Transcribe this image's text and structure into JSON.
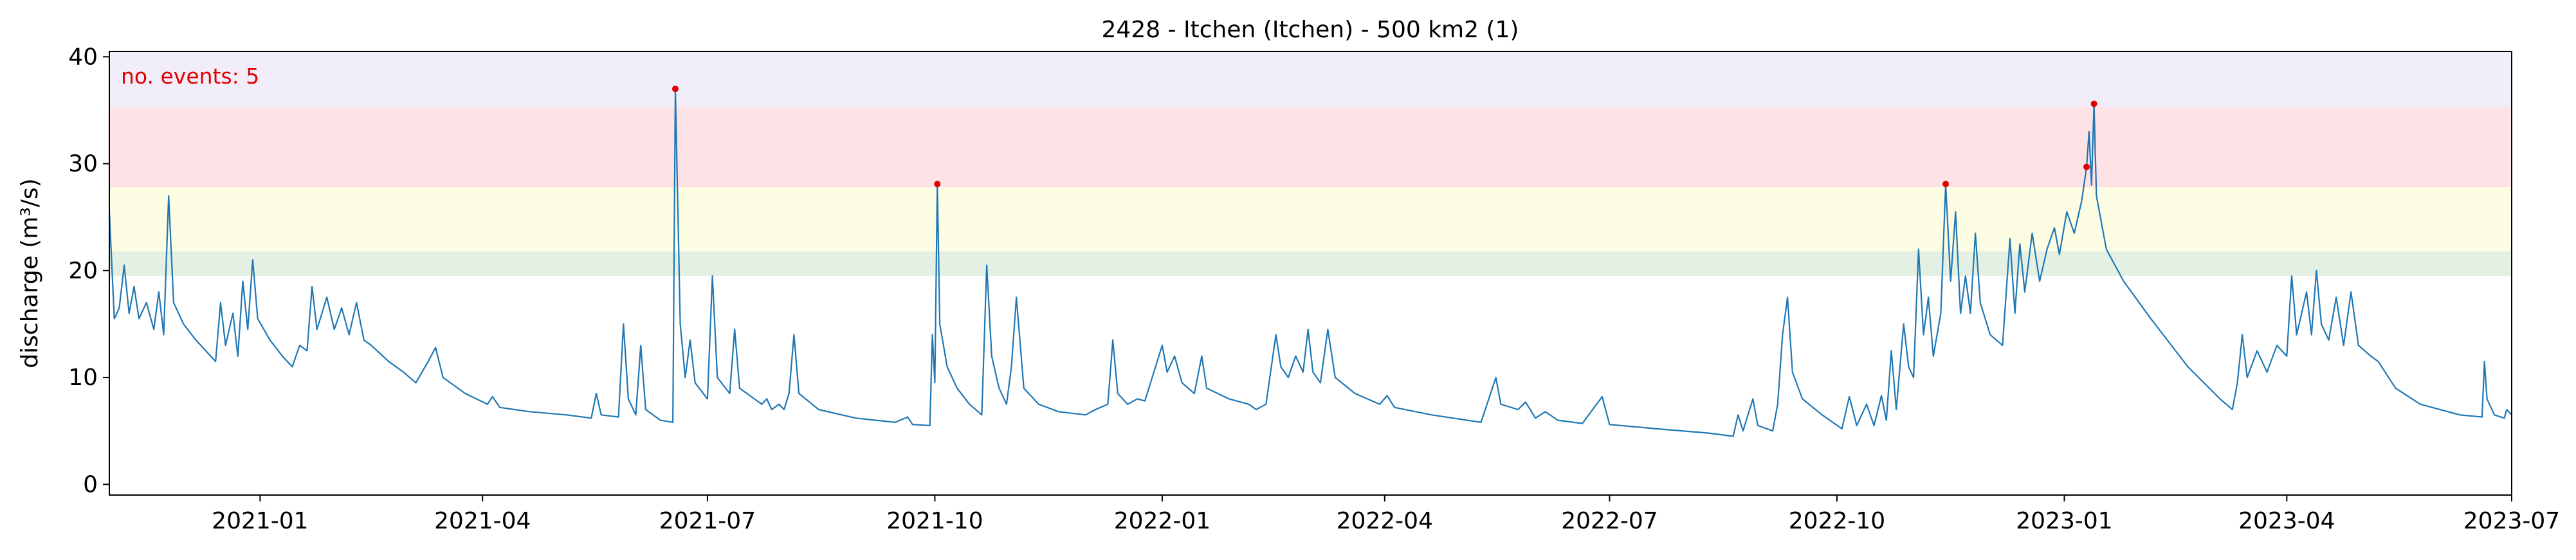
{
  "chart_data": {
    "type": "line",
    "title": "2428 - Itchen (Itchen) - 500 km2 (1)",
    "xlabel": "",
    "ylabel": "discharge (m³/s)",
    "xlim": [
      "2020-11-01",
      "2023-07-01"
    ],
    "ylim": [
      -1,
      40.5
    ],
    "xticks": [
      "2021-01",
      "2021-04",
      "2021-07",
      "2021-10",
      "2022-01",
      "2022-04",
      "2022-07",
      "2022-10",
      "2023-01",
      "2023-04",
      "2023-07"
    ],
    "yticks": [
      0,
      10,
      20,
      30,
      40
    ],
    "grid": false,
    "annotation": {
      "text": "no. events: 5",
      "color": "#e00000",
      "placement": "top-left"
    },
    "bands": [
      {
        "y0": 19.5,
        "y1": 21.8,
        "color": "#e3f0e3"
      },
      {
        "y0": 21.8,
        "y1": 27.8,
        "color": "#fdfde3"
      },
      {
        "y0": 27.8,
        "y1": 35.3,
        "color": "#fde3e5"
      },
      {
        "y0": 35.3,
        "y1": 40.5,
        "color": "#f1eef9"
      }
    ],
    "series": [
      {
        "color": "#1f77b4",
        "points": [
          [
            "2020-11-01",
            25.5
          ],
          [
            "2020-11-03",
            15.5
          ],
          [
            "2020-11-05",
            16.5
          ],
          [
            "2020-11-07",
            20.5
          ],
          [
            "2020-11-09",
            16
          ],
          [
            "2020-11-11",
            18.5
          ],
          [
            "2020-11-13",
            15.5
          ],
          [
            "2020-11-16",
            17
          ],
          [
            "2020-11-19",
            14.5
          ],
          [
            "2020-11-21",
            18
          ],
          [
            "2020-11-23",
            14
          ],
          [
            "2020-11-25",
            27
          ],
          [
            "2020-11-27",
            17
          ],
          [
            "2020-12-01",
            15
          ],
          [
            "2020-12-06",
            13.5
          ],
          [
            "2020-12-10",
            12.5
          ],
          [
            "2020-12-14",
            11.5
          ],
          [
            "2020-12-16",
            17
          ],
          [
            "2020-12-18",
            13
          ],
          [
            "2020-12-21",
            16
          ],
          [
            "2020-12-23",
            12
          ],
          [
            "2020-12-25",
            19
          ],
          [
            "2020-12-27",
            14.5
          ],
          [
            "2020-12-29",
            21
          ],
          [
            "2020-12-31",
            15.5
          ],
          [
            "2021-01-05",
            13.5
          ],
          [
            "2021-01-10",
            12
          ],
          [
            "2021-01-14",
            11
          ],
          [
            "2021-01-17",
            13
          ],
          [
            "2021-01-20",
            12.5
          ],
          [
            "2021-01-22",
            18.5
          ],
          [
            "2021-01-24",
            14.5
          ],
          [
            "2021-01-28",
            17.5
          ],
          [
            "2021-01-31",
            14.5
          ],
          [
            "2021-02-03",
            16.5
          ],
          [
            "2021-02-06",
            14
          ],
          [
            "2021-02-09",
            17
          ],
          [
            "2021-02-12",
            13.5
          ],
          [
            "2021-02-15",
            13
          ],
          [
            "2021-02-22",
            11.5
          ],
          [
            "2021-02-28",
            10.5
          ],
          [
            "2021-03-05",
            9.5
          ],
          [
            "2021-03-10",
            11.5
          ],
          [
            "2021-03-13",
            12.8
          ],
          [
            "2021-03-16",
            10
          ],
          [
            "2021-03-25",
            8.5
          ],
          [
            "2021-04-03",
            7.5
          ],
          [
            "2021-04-05",
            8.2
          ],
          [
            "2021-04-08",
            7.2
          ],
          [
            "2021-04-20",
            6.8
          ],
          [
            "2021-05-05",
            6.5
          ],
          [
            "2021-05-15",
            6.2
          ],
          [
            "2021-05-17",
            8.5
          ],
          [
            "2021-05-19",
            6.5
          ],
          [
            "2021-05-26",
            6.3
          ],
          [
            "2021-05-28",
            15
          ],
          [
            "2021-05-30",
            8
          ],
          [
            "2021-06-02",
            6.5
          ],
          [
            "2021-06-04",
            13
          ],
          [
            "2021-06-06",
            7
          ],
          [
            "2021-06-12",
            6
          ],
          [
            "2021-06-17",
            5.8
          ],
          [
            "2021-06-18",
            37
          ],
          [
            "2021-06-20",
            15
          ],
          [
            "2021-06-22",
            10
          ],
          [
            "2021-06-24",
            13.5
          ],
          [
            "2021-06-26",
            9.5
          ],
          [
            "2021-07-01",
            8
          ],
          [
            "2021-07-03",
            19.5
          ],
          [
            "2021-07-05",
            10
          ],
          [
            "2021-07-10",
            8.5
          ],
          [
            "2021-07-12",
            14.5
          ],
          [
            "2021-07-14",
            9
          ],
          [
            "2021-07-20",
            8
          ],
          [
            "2021-07-23",
            7.5
          ],
          [
            "2021-07-25",
            8
          ],
          [
            "2021-07-27",
            7
          ],
          [
            "2021-07-30",
            7.5
          ],
          [
            "2021-08-01",
            7
          ],
          [
            "2021-08-03",
            8.5
          ],
          [
            "2021-08-05",
            14
          ],
          [
            "2021-08-07",
            8.5
          ],
          [
            "2021-08-15",
            7
          ],
          [
            "2021-08-30",
            6.2
          ],
          [
            "2021-09-15",
            5.8
          ],
          [
            "2021-09-20",
            6.3
          ],
          [
            "2021-09-22",
            5.6
          ],
          [
            "2021-09-29",
            5.5
          ],
          [
            "2021-09-30",
            14
          ],
          [
            "2021-10-01",
            9.5
          ],
          [
            "2021-10-02",
            28.1
          ],
          [
            "2021-10-03",
            15
          ],
          [
            "2021-10-06",
            11
          ],
          [
            "2021-10-10",
            9
          ],
          [
            "2021-10-15",
            7.5
          ],
          [
            "2021-10-20",
            6.5
          ],
          [
            "2021-10-22",
            20.5
          ],
          [
            "2021-10-24",
            12
          ],
          [
            "2021-10-27",
            9
          ],
          [
            "2021-10-30",
            7.5
          ],
          [
            "2021-11-01",
            11
          ],
          [
            "2021-11-03",
            17.5
          ],
          [
            "2021-11-06",
            9
          ],
          [
            "2021-11-12",
            7.5
          ],
          [
            "2021-11-20",
            6.8
          ],
          [
            "2021-12-01",
            6.5
          ],
          [
            "2021-12-05",
            7
          ],
          [
            "2021-12-10",
            7.5
          ],
          [
            "2021-12-12",
            13.5
          ],
          [
            "2021-12-14",
            8.5
          ],
          [
            "2021-12-18",
            7.5
          ],
          [
            "2021-12-22",
            8
          ],
          [
            "2021-12-25",
            7.8
          ],
          [
            "2022-01-01",
            13
          ],
          [
            "2022-01-03",
            10.5
          ],
          [
            "2022-01-06",
            12
          ],
          [
            "2022-01-09",
            9.5
          ],
          [
            "2022-01-14",
            8.5
          ],
          [
            "2022-01-17",
            12
          ],
          [
            "2022-01-19",
            9
          ],
          [
            "2022-01-28",
            8
          ],
          [
            "2022-02-05",
            7.5
          ],
          [
            "2022-02-08",
            7
          ],
          [
            "2022-02-12",
            7.5
          ],
          [
            "2022-02-16",
            14
          ],
          [
            "2022-02-18",
            11
          ],
          [
            "2022-02-21",
            10
          ],
          [
            "2022-02-24",
            12
          ],
          [
            "2022-02-27",
            10.5
          ],
          [
            "2022-03-01",
            14.5
          ],
          [
            "2022-03-03",
            10.5
          ],
          [
            "2022-03-06",
            9.5
          ],
          [
            "2022-03-09",
            14.5
          ],
          [
            "2022-03-12",
            10
          ],
          [
            "2022-03-20",
            8.5
          ],
          [
            "2022-03-30",
            7.5
          ],
          [
            "2022-04-02",
            8.3
          ],
          [
            "2022-04-05",
            7.2
          ],
          [
            "2022-04-20",
            6.5
          ],
          [
            "2022-05-10",
            5.8
          ],
          [
            "2022-05-16",
            10
          ],
          [
            "2022-05-18",
            7.5
          ],
          [
            "2022-05-25",
            7
          ],
          [
            "2022-05-28",
            7.7
          ],
          [
            "2022-06-01",
            6.2
          ],
          [
            "2022-06-05",
            6.8
          ],
          [
            "2022-06-10",
            6
          ],
          [
            "2022-06-20",
            5.7
          ],
          [
            "2022-06-28",
            8.2
          ],
          [
            "2022-07-01",
            5.6
          ],
          [
            "2022-07-20",
            5.2
          ],
          [
            "2022-08-10",
            4.8
          ],
          [
            "2022-08-20",
            4.5
          ],
          [
            "2022-08-22",
            6.5
          ],
          [
            "2022-08-24",
            5
          ],
          [
            "2022-08-28",
            8
          ],
          [
            "2022-08-30",
            5.5
          ],
          [
            "2022-09-05",
            5
          ],
          [
            "2022-09-07",
            7.5
          ],
          [
            "2022-09-09",
            14
          ],
          [
            "2022-09-11",
            17.5
          ],
          [
            "2022-09-13",
            10.5
          ],
          [
            "2022-09-17",
            8
          ],
          [
            "2022-09-25",
            6.5
          ],
          [
            "2022-10-03",
            5.2
          ],
          [
            "2022-10-06",
            8.2
          ],
          [
            "2022-10-09",
            5.5
          ],
          [
            "2022-10-13",
            7.5
          ],
          [
            "2022-10-16",
            5.5
          ],
          [
            "2022-10-19",
            8.3
          ],
          [
            "2022-10-21",
            6
          ],
          [
            "2022-10-23",
            12.5
          ],
          [
            "2022-10-25",
            7
          ],
          [
            "2022-10-28",
            15
          ],
          [
            "2022-10-30",
            11
          ],
          [
            "2022-11-01",
            10
          ],
          [
            "2022-11-03",
            22
          ],
          [
            "2022-11-05",
            14
          ],
          [
            "2022-11-07",
            17.5
          ],
          [
            "2022-11-09",
            12
          ],
          [
            "2022-11-12",
            16
          ],
          [
            "2022-11-14",
            28.1
          ],
          [
            "2022-11-16",
            19
          ],
          [
            "2022-11-18",
            25.5
          ],
          [
            "2022-11-20",
            16
          ],
          [
            "2022-11-22",
            19.5
          ],
          [
            "2022-11-24",
            16
          ],
          [
            "2022-11-26",
            23.5
          ],
          [
            "2022-11-28",
            17
          ],
          [
            "2022-12-02",
            14
          ],
          [
            "2022-12-07",
            13
          ],
          [
            "2022-12-10",
            23
          ],
          [
            "2022-12-12",
            16
          ],
          [
            "2022-12-14",
            22.5
          ],
          [
            "2022-12-16",
            18
          ],
          [
            "2022-12-19",
            23.5
          ],
          [
            "2022-12-22",
            19
          ],
          [
            "2022-12-25",
            22
          ],
          [
            "2022-12-28",
            24
          ],
          [
            "2022-12-30",
            21.5
          ],
          [
            "2023-01-02",
            25.5
          ],
          [
            "2023-01-05",
            23.5
          ],
          [
            "2023-01-08",
            26.5
          ],
          [
            "2023-01-10",
            29.7
          ],
          [
            "2023-01-11",
            33
          ],
          [
            "2023-01-12",
            28
          ],
          [
            "2023-01-13",
            35.6
          ],
          [
            "2023-01-14",
            27
          ],
          [
            "2023-01-18",
            22
          ],
          [
            "2023-01-25",
            19
          ],
          [
            "2023-02-05",
            15.5
          ],
          [
            "2023-02-20",
            11
          ],
          [
            "2023-03-05",
            8
          ],
          [
            "2023-03-10",
            7
          ],
          [
            "2023-03-12",
            9.5
          ],
          [
            "2023-03-14",
            14
          ],
          [
            "2023-03-16",
            10
          ],
          [
            "2023-03-20",
            12.5
          ],
          [
            "2023-03-24",
            10.5
          ],
          [
            "2023-03-28",
            13
          ],
          [
            "2023-04-01",
            12
          ],
          [
            "2023-04-03",
            19.5
          ],
          [
            "2023-04-05",
            14
          ],
          [
            "2023-04-09",
            18
          ],
          [
            "2023-04-11",
            14
          ],
          [
            "2023-04-13",
            20
          ],
          [
            "2023-04-15",
            15
          ],
          [
            "2023-04-18",
            13.5
          ],
          [
            "2023-04-21",
            17.5
          ],
          [
            "2023-04-24",
            13
          ],
          [
            "2023-04-27",
            18
          ],
          [
            "2023-04-30",
            13
          ],
          [
            "2023-05-05",
            12
          ],
          [
            "2023-05-08",
            11.5
          ],
          [
            "2023-05-15",
            9
          ],
          [
            "2023-05-25",
            7.5
          ],
          [
            "2023-06-10",
            6.5
          ],
          [
            "2023-06-19",
            6.3
          ],
          [
            "2023-06-20",
            11.5
          ],
          [
            "2023-06-21",
            8
          ],
          [
            "2023-06-24",
            6.5
          ],
          [
            "2023-06-28",
            6.2
          ],
          [
            "2023-06-29",
            7
          ],
          [
            "2023-07-01",
            6.5
          ]
        ]
      }
    ],
    "events": [
      {
        "x": "2021-06-18",
        "y": 37
      },
      {
        "x": "2021-10-02",
        "y": 28.1
      },
      {
        "x": "2022-11-14",
        "y": 28.1
      },
      {
        "x": "2023-01-10",
        "y": 29.7
      },
      {
        "x": "2023-01-13",
        "y": 35.6
      }
    ],
    "event_color": "#e00000"
  }
}
